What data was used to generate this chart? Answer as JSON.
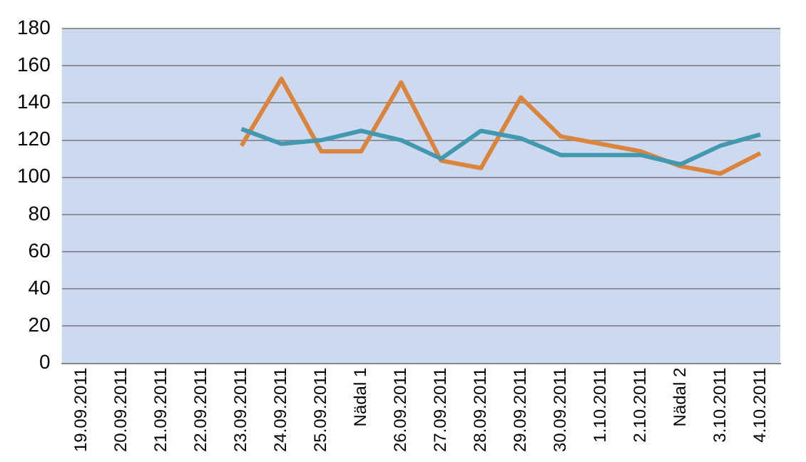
{
  "chart_data": {
    "type": "line",
    "categories": [
      "19.09.2011",
      "20.09.2011",
      "21.09.2011",
      "22.09.2011",
      "23.09.2011",
      "24.09.2011",
      "25.09.2011",
      "Nädal 1",
      "26.09.2011",
      "27.09.2011",
      "28.09.2011",
      "29.09.2011",
      "30.09.2011",
      "1.10.2011",
      "2.10.2011",
      "Nädal 2",
      "3.10.2011",
      "4.10.2011"
    ],
    "series": [
      {
        "color": "#4198af",
        "values": [
          null,
          null,
          null,
          null,
          126,
          118,
          120,
          125,
          120,
          110,
          125,
          121,
          112,
          112,
          112,
          107,
          117,
          123
        ]
      },
      {
        "color": "#db843d",
        "values": [
          null,
          null,
          null,
          null,
          117,
          153,
          114,
          114,
          151,
          109,
          105,
          143,
          122,
          118,
          114,
          106,
          102,
          113
        ]
      }
    ],
    "ylim": [
      0,
      180
    ],
    "yticks": [
      0,
      20,
      40,
      60,
      80,
      100,
      120,
      140,
      160,
      180
    ],
    "grid": "y",
    "legend": false,
    "marker": "none",
    "line_style": "solid"
  }
}
